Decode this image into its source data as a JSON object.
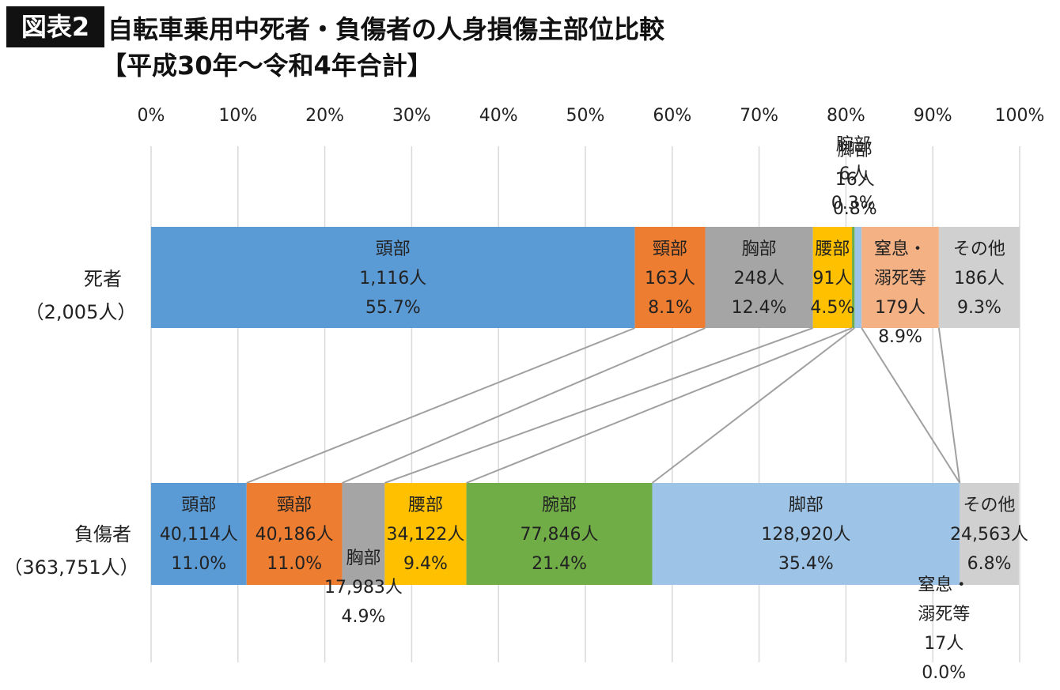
{
  "chart_data": {
    "type": "bar",
    "orientation": "horizontal",
    "stacked": "percent",
    "figure_label": "図表2",
    "title": "自転車乗用中死者・負傷者の人身損傷主部位比較",
    "subtitle": "【平成30年〜令和4年合計】",
    "categories": [
      "死者",
      "負傷者"
    ],
    "category_totals": [
      "（2,005人）",
      "（363,751人）"
    ],
    "xlim": [
      0,
      100
    ],
    "xticks": [
      {
        "value": 0,
        "label": "0%"
      },
      {
        "value": 10,
        "label": "10%"
      },
      {
        "value": 20,
        "label": "20%"
      },
      {
        "value": 30,
        "label": "30%"
      },
      {
        "value": 40,
        "label": "40%"
      },
      {
        "value": 50,
        "label": "50%"
      },
      {
        "value": 60,
        "label": "60%"
      },
      {
        "value": 70,
        "label": "70%"
      },
      {
        "value": 80,
        "label": "80%"
      },
      {
        "value": 90,
        "label": "90%"
      },
      {
        "value": 100,
        "label": "100%"
      }
    ],
    "grid": true,
    "series": [
      {
        "name": "頭部",
        "color": "#5b9bd5",
        "values": [
          55.7,
          11.0
        ],
        "value_labels": [
          "55.7%",
          "11.0%"
        ],
        "count_labels": [
          "1,116人",
          "40,114人"
        ]
      },
      {
        "name": "頸部",
        "color": "#ed7d31",
        "values": [
          8.1,
          11.0
        ],
        "value_labels": [
          "8.1%",
          "11.0%"
        ],
        "count_labels": [
          "163人",
          "40,186人"
        ]
      },
      {
        "name": "胸部",
        "color": "#a5a5a5",
        "values": [
          12.4,
          4.9
        ],
        "value_labels": [
          "12.4%",
          "4.9%"
        ],
        "count_labels": [
          "248人",
          "17,983人"
        ]
      },
      {
        "name": "腰部",
        "color": "#ffc000",
        "values": [
          4.5,
          9.4
        ],
        "value_labels": [
          "4.5%",
          "9.4%"
        ],
        "count_labels": [
          "91人",
          "34,122人"
        ]
      },
      {
        "name": "腕部",
        "color": "#70ad47",
        "values": [
          0.3,
          21.4
        ],
        "value_labels": [
          "0.3%",
          "21.4%"
        ],
        "count_labels": [
          "6人",
          "77,846人"
        ]
      },
      {
        "name": "脚部",
        "color": "#9dc3e6",
        "values": [
          0.8,
          35.4
        ],
        "value_labels": [
          "0.8%",
          "35.4%"
        ],
        "count_labels": [
          "16人",
          "128,920人"
        ]
      },
      {
        "name": "窒息・溺死等",
        "color": "#f4b183",
        "values": [
          8.9,
          0.0
        ],
        "value_labels": [
          "8.9%",
          "0.0%"
        ],
        "count_labels": [
          "179人",
          "17人"
        ]
      },
      {
        "name": "その他",
        "color": "#d0d0d0",
        "values": [
          9.3,
          6.8
        ],
        "value_labels": [
          "9.3%",
          "6.8%"
        ],
        "count_labels": [
          "186人",
          "24,563人"
        ]
      }
    ]
  }
}
